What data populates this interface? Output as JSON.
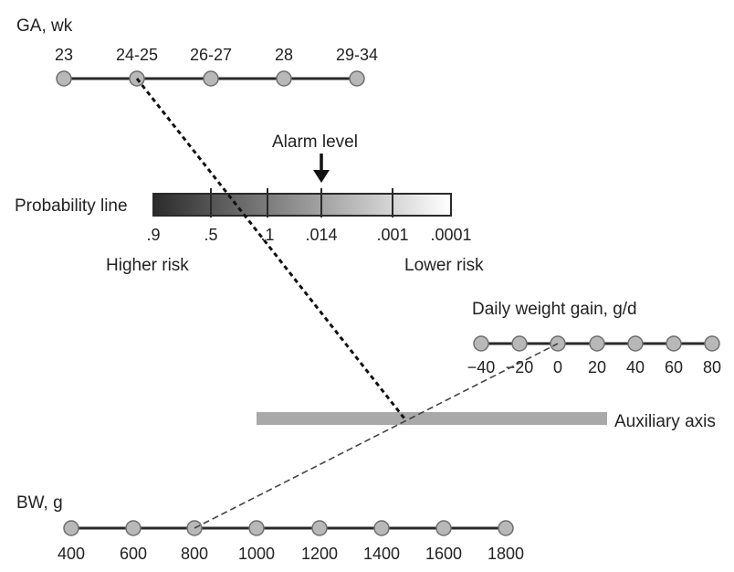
{
  "ga_axis": {
    "title": "GA, wk",
    "ticks": [
      "23",
      "24-25",
      "26-27",
      "28",
      "29-34"
    ]
  },
  "probability_line": {
    "label": "Probability line",
    "alarm_label": "Alarm level",
    "ticks": [
      ".9",
      ".5",
      ".1",
      ".014",
      ".001",
      ".0001"
    ],
    "higher_risk": "Higher risk",
    "lower_risk": "Lower risk"
  },
  "weight_gain_axis": {
    "title": "Daily weight gain, g/d",
    "ticks": [
      "−40",
      "−20",
      "0",
      "20",
      "40",
      "60",
      "80"
    ]
  },
  "auxiliary_axis": {
    "label": "Auxiliary axis"
  },
  "bw_axis": {
    "title": "BW, g",
    "ticks": [
      "400",
      "600",
      "800",
      "1000",
      "1200",
      "1400",
      "1600",
      "1800"
    ]
  },
  "example_lines": [
    {
      "from": "24-25",
      "to": "Auxiliary axis",
      "style": "dashed-heavy"
    },
    {
      "from": "800",
      "to": "0",
      "style": "dashed-light"
    }
  ]
}
